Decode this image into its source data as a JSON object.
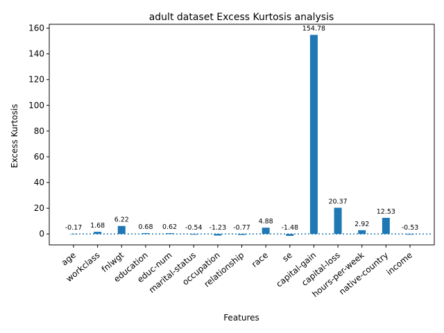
{
  "chart_data": {
    "type": "bar",
    "title": "adult dataset Excess Kurtosis analysis",
    "xlabel": "Features",
    "ylabel": "Excess Kurtosis",
    "categories": [
      "age",
      "workclass",
      "fnlwgt",
      "education",
      "educ-num",
      "marital-status",
      "occupation",
      "relationship",
      "race",
      "se",
      "capital-gain",
      "capital-loss",
      "hours-per-week",
      "native-country",
      "income"
    ],
    "values": [
      -0.17,
      1.68,
      6.22,
      0.68,
      0.62,
      -0.54,
      -1.23,
      -0.77,
      4.88,
      -1.48,
      154.78,
      20.37,
      2.92,
      12.53,
      -0.53
    ],
    "value_labels": [
      "-0.17",
      "1.68",
      "6.22",
      "0.68",
      "0.62",
      "-0.54",
      "-1.23",
      "-0.77",
      "4.88",
      "-1.48",
      "154.78",
      "20.37",
      "2.92",
      "12.53",
      "-0.53"
    ],
    "ylim": [
      -8.5,
      163
    ],
    "yticks": [
      0,
      20,
      40,
      60,
      80,
      100,
      120,
      140,
      160
    ],
    "reference_line": 0,
    "grid": false,
    "legend": "none",
    "colors": {
      "bar": "#1f77b4",
      "reference_line": "#1f77b4",
      "axis": "#000000"
    }
  }
}
